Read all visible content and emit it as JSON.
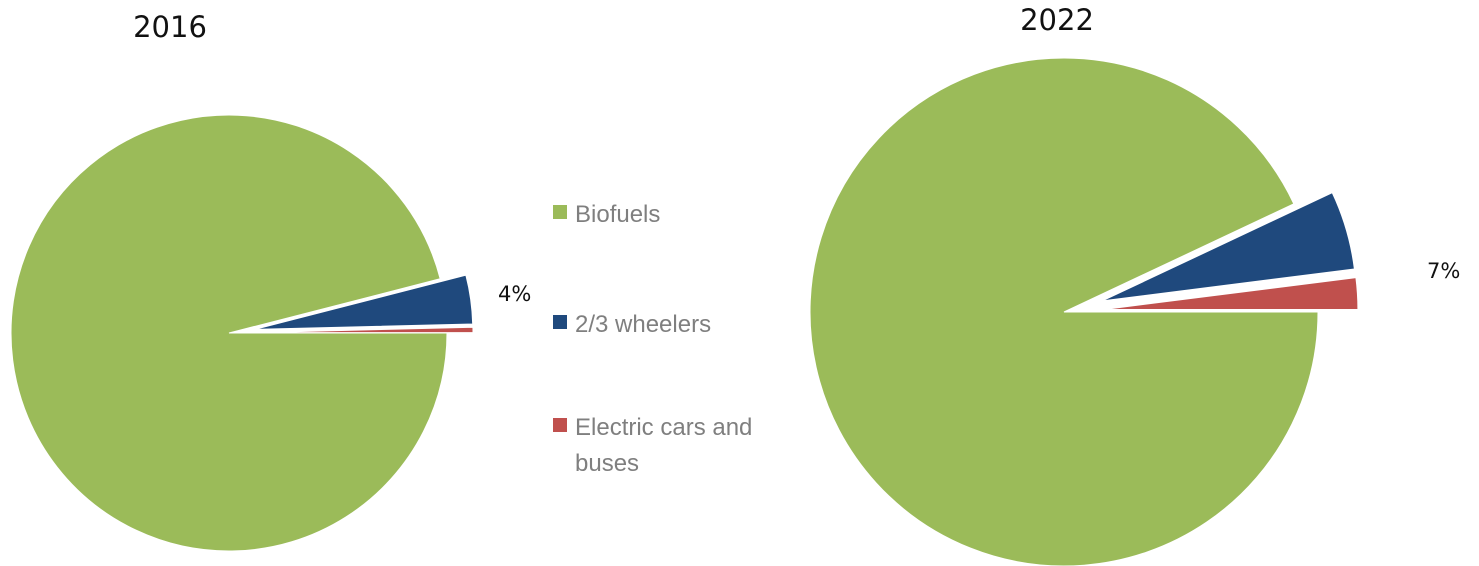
{
  "chart_data": [
    {
      "type": "pie",
      "title": "2016",
      "categories": [
        "Biofuels",
        "2/3 wheelers",
        "Electric cars and buses"
      ],
      "values": [
        96.0,
        3.6,
        0.4
      ],
      "unit": "%",
      "exploded": [
        "2/3 wheelers",
        "Electric cars and buses"
      ],
      "data_label": "4%"
    },
    {
      "type": "pie",
      "title": "2022",
      "categories": [
        "Biofuels",
        "2/3 wheelers",
        "Electric cars and buses"
      ],
      "values": [
        93.0,
        5.0,
        2.0
      ],
      "unit": "%",
      "exploded": [
        "2/3 wheelers",
        "Electric cars and buses"
      ],
      "data_label": "7%"
    }
  ],
  "legend": {
    "placement": "center",
    "items": [
      {
        "label": "Biofuels"
      },
      {
        "label": "2/3 wheelers"
      },
      {
        "label": "Electric cars and",
        "label_line2": "buses"
      }
    ]
  },
  "colors": {
    "Biofuels": "#9bbb59",
    "2/3 wheelers": "#1f497d",
    "Electric cars and buses": "#c0504d"
  }
}
